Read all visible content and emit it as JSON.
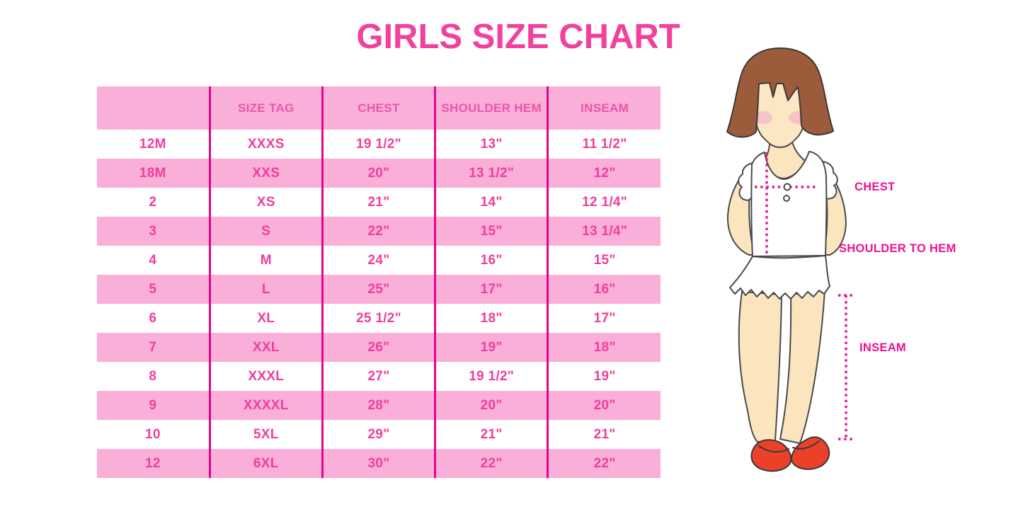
{
  "title": "GIRLS SIZE CHART",
  "table": {
    "columns": [
      "",
      "SIZE TAG",
      "CHEST",
      "SHOULDER HEM",
      "INSEAM"
    ],
    "rows": [
      [
        "12M",
        "XXXS",
        "19 1/2\"",
        "13\"",
        "11 1/2\""
      ],
      [
        "18M",
        "XXS",
        "20\"",
        "13 1/2\"",
        "12\""
      ],
      [
        "2",
        "XS",
        "21\"",
        "14\"",
        "12 1/4\""
      ],
      [
        "3",
        "S",
        "22\"",
        "15\"",
        "13 1/4\""
      ],
      [
        "4",
        "M",
        "24\"",
        "16\"",
        "15\""
      ],
      [
        "5",
        "L",
        "25\"",
        "17\"",
        "16\""
      ],
      [
        "6",
        "XL",
        "25 1/2\"",
        "18\"",
        "17\""
      ],
      [
        "7",
        "XXL",
        "26\"",
        "19\"",
        "18\""
      ],
      [
        "8",
        "XXXL",
        "27\"",
        "19 1/2\"",
        "19\""
      ],
      [
        "9",
        "XXXXL",
        "28\"",
        "20\"",
        "20\""
      ],
      [
        "10",
        "5XL",
        "29\"",
        "21\"",
        "21\""
      ],
      [
        "12",
        "6XL",
        "30\"",
        "22\"",
        "22\""
      ]
    ]
  },
  "figure": {
    "chest_label": "CHEST",
    "shoulder_label": "SHOULDER TO HEM",
    "inseam_label": "INSEAM"
  },
  "colors": {
    "title_pink": "#F2419D",
    "row_pink": "#FAAFD9",
    "table_text_pink": "#F03E9D",
    "divider_magenta": "#E2058D",
    "label_magenta": "#F00F93",
    "dotted_line_magenta": "#EC1190",
    "hair_brown": "#9C5C3B",
    "skin_peach": "#FBE5BE",
    "blush_pink": "#F5BCCA",
    "shoe_red": "#EA4128",
    "outline_gray": "#4A4A4A"
  }
}
